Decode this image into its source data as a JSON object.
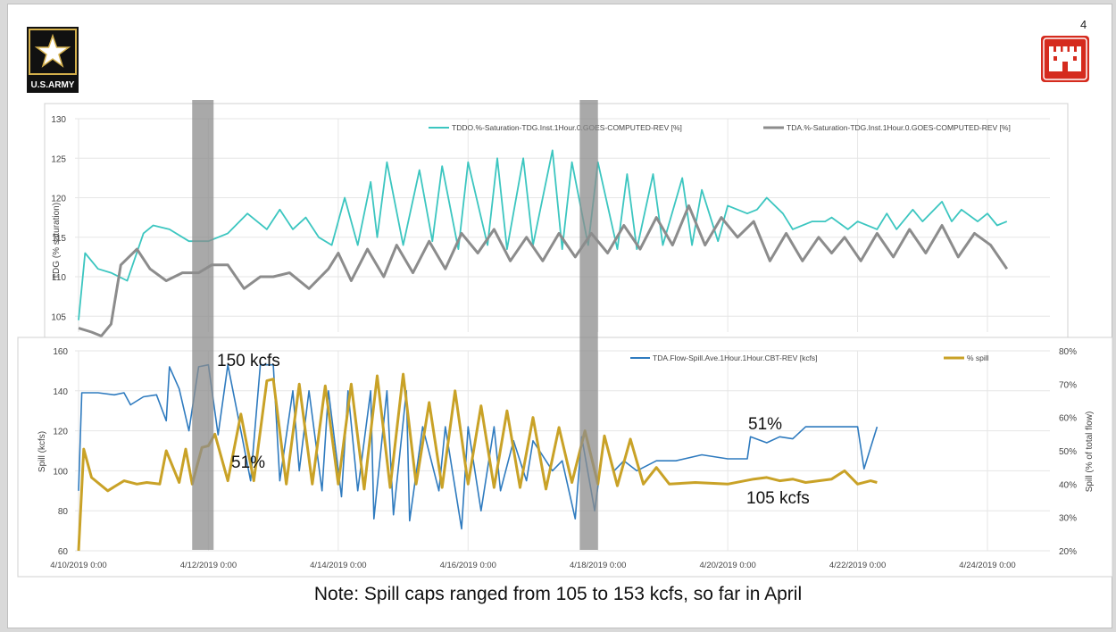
{
  "page": {
    "number": "4"
  },
  "logos": {
    "army": {
      "name": "star-icon",
      "text": "U.S.ARMY"
    },
    "corps": {
      "name": "castle-icon",
      "color": "#d52b1e"
    }
  },
  "note": "Note: Spill caps ranged from 105 to 153 kcfs, so far in April",
  "chart_data": [
    {
      "type": "line",
      "ylabel": "TDG (% saturation)",
      "ylim": [
        103,
        130
      ],
      "yticks": [
        105,
        110,
        115,
        120,
        125,
        130
      ],
      "x_start": "4/10/2019 0:00",
      "x_end": "4/24/2019 12:00",
      "grid": true,
      "legend_position": "top",
      "series": [
        {
          "name": "TDDO.%-Saturation-TDG.Inst.1Hour.0.GOES-COMPUTED-REV [%]",
          "color": "#3cc6c0",
          "x_days": [
            0,
            0.1,
            0.3,
            0.5,
            0.75,
            1.0,
            1.15,
            1.4,
            1.7,
            2.0,
            2.3,
            2.6,
            2.9,
            3.1,
            3.3,
            3.5,
            3.7,
            3.9,
            4.1,
            4.3,
            4.5,
            4.6,
            4.75,
            5.0,
            5.25,
            5.45,
            5.6,
            5.85,
            6.0,
            6.3,
            6.45,
            6.6,
            6.85,
            7.0,
            7.3,
            7.45,
            7.6,
            7.85,
            8.0,
            8.3,
            8.45,
            8.6,
            8.85,
            9.0,
            9.3,
            9.45,
            9.6,
            9.85,
            10.0,
            10.3,
            10.45,
            10.6,
            10.85,
            11.0,
            11.3,
            11.5,
            11.6,
            11.85,
            12.0,
            12.3,
            12.45,
            12.6,
            12.85,
            13.0,
            13.3,
            13.45,
            13.6,
            13.85,
            14.0,
            14.15,
            14.3
          ],
          "values": [
            104.5,
            113,
            111,
            110.5,
            109.5,
            115.5,
            116.5,
            116,
            114.5,
            114.5,
            115.5,
            118,
            116,
            118.5,
            116,
            117.5,
            115,
            114,
            120,
            114,
            122,
            115,
            124.5,
            114,
            123.5,
            114.5,
            124,
            113.5,
            124.5,
            114,
            125,
            113.5,
            125,
            114,
            126,
            113.5,
            124.5,
            114,
            124.5,
            113.5,
            123,
            113.5,
            123,
            114,
            122.5,
            114,
            121,
            114.5,
            119,
            118,
            118.5,
            120,
            118,
            116,
            117,
            117,
            117.5,
            116,
            117,
            116,
            118,
            116,
            118.5,
            117,
            119.5,
            117,
            118.5,
            117,
            118,
            116.5,
            117
          ]
        },
        {
          "name": "TDA.%-Saturation-TDG.Inst.1Hour.0.GOES-COMPUTED-REV [%]",
          "color": "#8c8c8c",
          "x_days": [
            0,
            0.2,
            0.35,
            0.5,
            0.65,
            0.9,
            1.1,
            1.35,
            1.6,
            1.85,
            2.05,
            2.3,
            2.55,
            2.8,
            3.0,
            3.25,
            3.55,
            3.85,
            4.0,
            4.2,
            4.45,
            4.7,
            4.9,
            5.15,
            5.4,
            5.65,
            5.9,
            6.15,
            6.4,
            6.65,
            6.9,
            7.15,
            7.4,
            7.65,
            7.9,
            8.15,
            8.4,
            8.65,
            8.9,
            9.15,
            9.4,
            9.65,
            9.9,
            10.15,
            10.4,
            10.65,
            10.9,
            11.15,
            11.4,
            11.6,
            11.8,
            12.05,
            12.3,
            12.55,
            12.8,
            13.05,
            13.3,
            13.55,
            13.8,
            14.05,
            14.3
          ],
          "values": [
            103.5,
            103,
            102.5,
            104,
            111.5,
            113.5,
            111,
            109.5,
            110.5,
            110.5,
            111.5,
            111.5,
            108.5,
            110,
            110,
            110.5,
            108.5,
            111,
            113,
            109.5,
            113.5,
            110,
            114,
            110.5,
            114.5,
            111,
            115.5,
            113,
            116,
            112,
            115,
            112,
            115.5,
            112.5,
            115.5,
            113,
            116.5,
            113.5,
            117.5,
            114,
            119,
            114,
            117.5,
            115,
            117,
            112,
            115.5,
            112,
            115,
            113,
            115,
            112,
            115.5,
            112.5,
            116,
            113,
            116.5,
            112.5,
            115.5,
            114,
            111
          ]
        }
      ],
      "highlight_bands": [
        [
          1.75,
          2.08
        ],
        [
          7.72,
          8.0
        ]
      ]
    },
    {
      "type": "line",
      "ylabel": "Spill (kcfs)",
      "y2label": "Spill (% of total flow)",
      "ylim": [
        60,
        160
      ],
      "yticks": [
        60,
        80,
        100,
        120,
        140,
        160
      ],
      "y2lim": [
        20,
        80
      ],
      "y2ticks": [
        "20%",
        "30%",
        "40%",
        "50%",
        "60%",
        "70%",
        "80%"
      ],
      "xticks": [
        "4/10/2019 0:00",
        "4/12/2019 0:00",
        "4/14/2019 0:00",
        "4/16/2019 0:00",
        "4/18/2019 0:00",
        "4/20/2019 0:00",
        "4/22/2019 0:00",
        "4/24/2019 0:00"
      ],
      "grid": true,
      "legend_position": "top",
      "series": [
        {
          "name": "TDA.Flow-Spill.Ave.1Hour.1Hour.CBT-REV [kcfs]",
          "color": "#2f7bbf",
          "x_days": [
            0,
            0.05,
            0.3,
            0.55,
            0.7,
            0.8,
            1.0,
            1.2,
            1.35,
            1.4,
            1.55,
            1.7,
            1.85,
            2.0,
            2.15,
            2.3,
            2.5,
            2.65,
            2.8,
            3.0,
            3.1,
            3.3,
            3.4,
            3.55,
            3.75,
            3.85,
            4.05,
            4.15,
            4.3,
            4.5,
            4.55,
            4.75,
            4.85,
            5.05,
            5.1,
            5.3,
            5.55,
            5.65,
            5.9,
            6.0,
            6.2,
            6.4,
            6.5,
            6.7,
            6.9,
            7.0,
            7.3,
            7.45,
            7.65,
            7.75,
            7.95,
            8.1,
            8.25,
            8.4,
            8.6,
            8.9,
            9.2,
            9.6,
            10.0,
            10.3,
            10.35,
            10.6,
            10.8,
            11.0,
            11.2,
            11.4,
            11.8,
            12.0,
            12.1,
            12.3
          ],
          "values": [
            90,
            139,
            139,
            138,
            139,
            133,
            137,
            138,
            125,
            152,
            141,
            120,
            152,
            153,
            118,
            153,
            120,
            95,
            153,
            153,
            95,
            140,
            100,
            140,
            90,
            140,
            87,
            140,
            90,
            140,
            76,
            140,
            78,
            140,
            75,
            122,
            90,
            122,
            71,
            122,
            80,
            122,
            90,
            115,
            95,
            115,
            100,
            105,
            76,
            117,
            80,
            117,
            100,
            105,
            100,
            105,
            105,
            108,
            106,
            106,
            117,
            114,
            117,
            116,
            122,
            122,
            122,
            122,
            101,
            122
          ]
        },
        {
          "name": "% spill",
          "color": "#c9a227",
          "x_days": [
            0,
            0.08,
            0.2,
            0.45,
            0.7,
            0.9,
            1.05,
            1.25,
            1.35,
            1.55,
            1.65,
            1.75,
            1.9,
            2.0,
            2.1,
            2.3,
            2.5,
            2.7,
            2.9,
            3.0,
            3.2,
            3.4,
            3.6,
            3.8,
            4.0,
            4.2,
            4.4,
            4.6,
            4.8,
            5.0,
            5.2,
            5.4,
            5.6,
            5.8,
            6.0,
            6.2,
            6.4,
            6.6,
            6.8,
            7.0,
            7.2,
            7.4,
            7.6,
            7.8,
            8.0,
            8.1,
            8.3,
            8.5,
            8.7,
            8.9,
            9.1,
            9.5,
            10.0,
            10.4,
            10.6,
            10.8,
            11.0,
            11.2,
            11.4,
            11.6,
            11.8,
            12.0,
            12.2,
            12.3
          ],
          "values": [
            20,
            50.5,
            42,
            38,
            41,
            40,
            40.5,
            40,
            50,
            40.5,
            50.5,
            40,
            51,
            51.5,
            55,
            41,
            61,
            41,
            71,
            71.5,
            40,
            70,
            40,
            69.5,
            40,
            70,
            38.5,
            72.5,
            39,
            73,
            40,
            64.5,
            39,
            68,
            40,
            63.5,
            39,
            62,
            39,
            60,
            38.5,
            57,
            40.5,
            56,
            40,
            54.5,
            39.5,
            53.5,
            40,
            45,
            40,
            40.5,
            40,
            41.5,
            42,
            41,
            41.5,
            40.5,
            41,
            41.5,
            44,
            40,
            41,
            40.5
          ]
        }
      ],
      "highlight_bands": [
        [
          1.75,
          2.08
        ],
        [
          7.72,
          8.0
        ]
      ],
      "annotations": [
        "150 kcfs",
        "51%",
        "51%",
        "105 kcfs"
      ]
    }
  ]
}
